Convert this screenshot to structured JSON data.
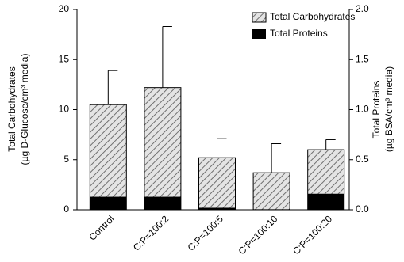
{
  "chart_data": {
    "type": "bar",
    "ylabel": [
      "Total Carbohydrates",
      "(µg D-Glucose/cm³ media)"
    ],
    "y2label": [
      "Total Proteins",
      "(µg BSA/cm³ media)"
    ],
    "categories": [
      "Control",
      "C:P=100:2",
      "C:P=100:5",
      "C:P=100:10",
      "C:P=100:20"
    ],
    "series": [
      {
        "name": "Total Carbohydrates",
        "color": "#c8c8c8",
        "hatch": true,
        "values": [
          10.5,
          12.2,
          5.2,
          3.7,
          6.0
        ],
        "errors": [
          3.4,
          6.1,
          1.9,
          2.9,
          1.0
        ]
      },
      {
        "name": "Total Proteins",
        "color": "#000000",
        "axis": "y2",
        "values": [
          0.13,
          0.13,
          0.02,
          0.005,
          0.16
        ]
      }
    ],
    "ylim": [
      0,
      20
    ],
    "yticks": [
      0,
      5,
      10,
      15,
      20
    ],
    "y2lim": [
      0,
      2
    ],
    "y2ticks": [
      {
        "value": 0,
        "label": "0.0"
      },
      {
        "value": 0.5,
        "label": "0.5"
      },
      {
        "value": 1,
        "label": "1.0"
      },
      {
        "value": 1.5,
        "label": "1.5"
      },
      {
        "value": 2,
        "label": "2.0"
      }
    ],
    "legend": "top-right"
  }
}
